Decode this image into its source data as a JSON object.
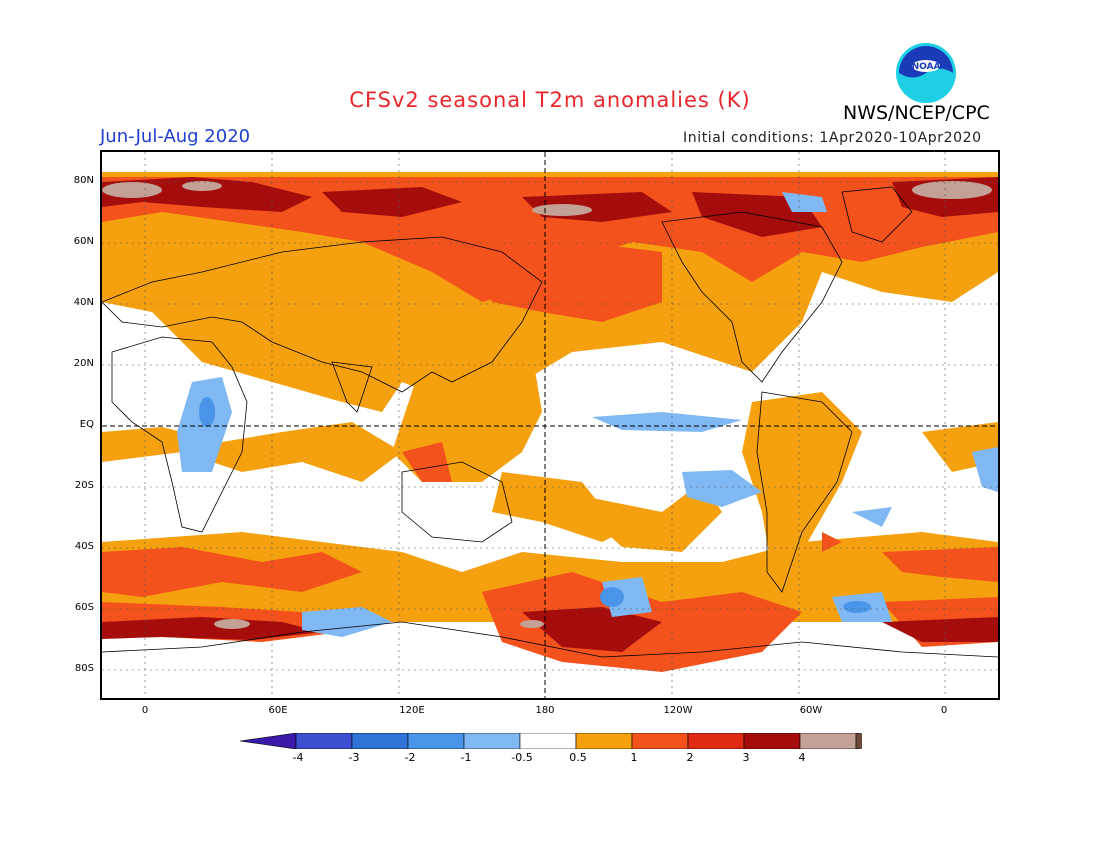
{
  "title": "CFSv2 seasonal T2m anomalies (K)",
  "agency": "NWS/NCEP/CPC",
  "season": "Jun-Jul-Aug 2020",
  "initial_conditions": "Initial conditions: 1Apr2020-10Apr2020",
  "logo_text": "NOAA",
  "lat_labels": [
    "80N",
    "60N",
    "40N",
    "20N",
    "EQ",
    "20S",
    "40S",
    "60S",
    "80S"
  ],
  "lon_labels": [
    "0",
    "60E",
    "120E",
    "180",
    "120W",
    "60W",
    "0"
  ],
  "colorbar": {
    "labels": [
      "-4",
      "-3",
      "-2",
      "-1",
      "-0.5",
      "0.5",
      "1",
      "2",
      "3",
      "4"
    ],
    "colors": [
      "#3a1aa8",
      "#3d4fd1",
      "#2f73d6",
      "#4a95ea",
      "#7fb8f2",
      "#ffffff",
      "#f5a10f",
      "#f4521c",
      "#e02a14",
      "#a50d0d",
      "#c3a195",
      "#6b4a3c"
    ]
  },
  "palette": {
    "warm_0_5_1": "#f5a10f",
    "warm_1_2": "#f4521c",
    "warm_2_3": "#a50d0d",
    "warm_3_4": "#c3a195",
    "cool_0_5_1": "#7fb8f2",
    "cool_1_2": "#4a95ea",
    "title_red": "#e8262b",
    "season_blue": "#1f3fd0"
  }
}
